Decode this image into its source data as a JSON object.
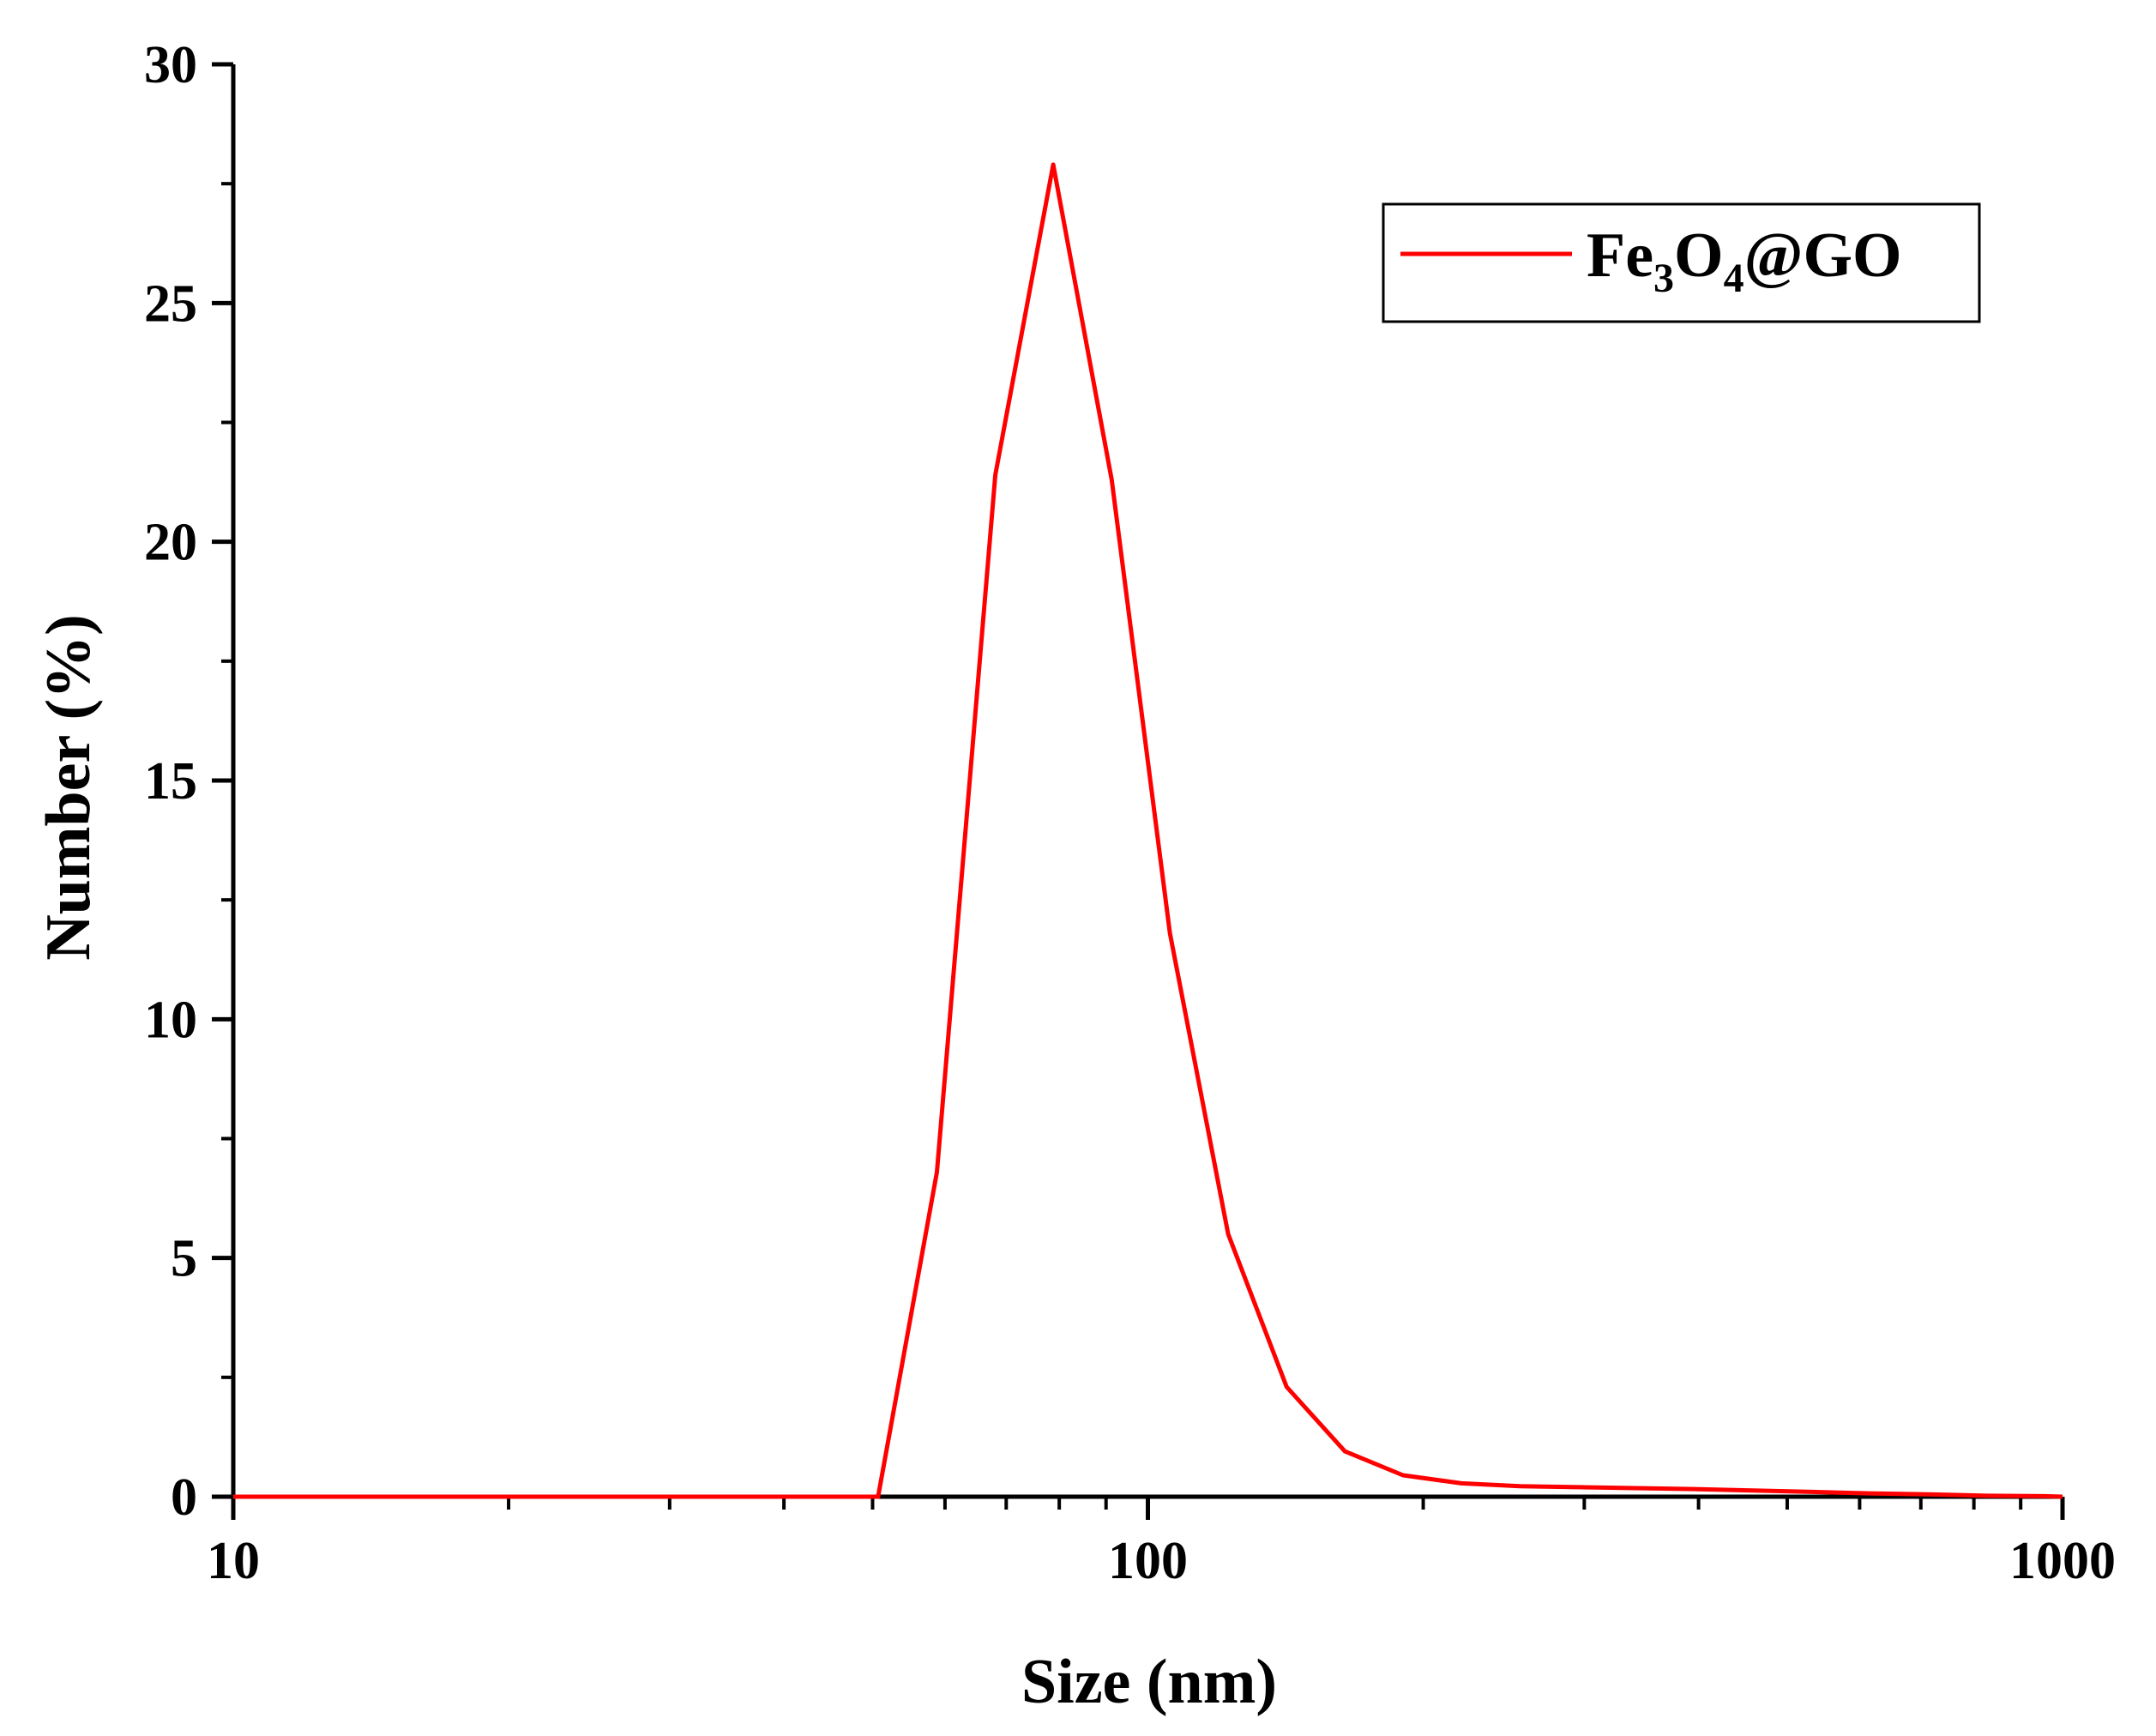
{
  "chart_data": {
    "type": "line",
    "xlabel": "Size (nm)",
    "ylabel": "Number (%)",
    "x_scale": "log",
    "xlim": [
      10,
      1000
    ],
    "ylim": [
      0,
      30
    ],
    "x_ticks": [
      "10",
      "100",
      "1000"
    ],
    "y_ticks": [
      "0",
      "5",
      "10",
      "15",
      "20",
      "25",
      "30"
    ],
    "grid": false,
    "legend_position": "top-right",
    "legend": {
      "base1": "Fe",
      "sub1": "3",
      "base2": "O",
      "sub2": "4",
      "rest": "@GO"
    },
    "series": [
      {
        "name": "Fe3O4@GO",
        "color": "#ff0000",
        "x": [
          10,
          11.7,
          13.5,
          15.7,
          18.2,
          21.0,
          24.4,
          28.2,
          32.7,
          37.8,
          43.8,
          50.7,
          58.8,
          68.1,
          78.8,
          91.3,
          105.7,
          122.4,
          141.8,
          164.2,
          190.1,
          220.2,
          255.0,
          295.3,
          342.0,
          396.1,
          458.7,
          531.2,
          615.1,
          712.4,
          825.0,
          955.4,
          1000
        ],
        "y": [
          0,
          0,
          0,
          0,
          0,
          0,
          0,
          0,
          0,
          0,
          0,
          0,
          6.8,
          21.4,
          27.9,
          21.3,
          11.8,
          5.5,
          2.3,
          0.95,
          0.45,
          0.28,
          0.22,
          0.2,
          0.18,
          0.16,
          0.13,
          0.1,
          0.07,
          0.05,
          0.02,
          0.01,
          0
        ]
      }
    ]
  }
}
